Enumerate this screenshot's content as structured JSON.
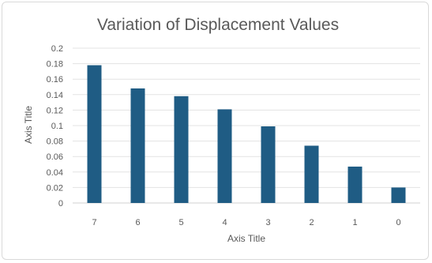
{
  "chart_data": {
    "type": "bar",
    "title": "Variation of Displacement Values",
    "xlabel": "Axis Title",
    "ylabel": "Axis Title",
    "categories": [
      "7",
      "6",
      "5",
      "4",
      "3",
      "2",
      "1",
      "0"
    ],
    "series": [
      {
        "values": [
          0.178,
          0.148,
          0.138,
          0.121,
          0.099,
          0.074,
          0.047,
          0.02
        ]
      }
    ],
    "ylim": [
      0,
      0.2
    ],
    "yticks": [
      "0",
      "0.02",
      "0.04",
      "0.06",
      "0.08",
      "0.1",
      "0.12",
      "0.14",
      "0.16",
      "0.18",
      "0.2"
    ],
    "grid": true,
    "legend": "none",
    "bar_color": "#1f5c84"
  }
}
